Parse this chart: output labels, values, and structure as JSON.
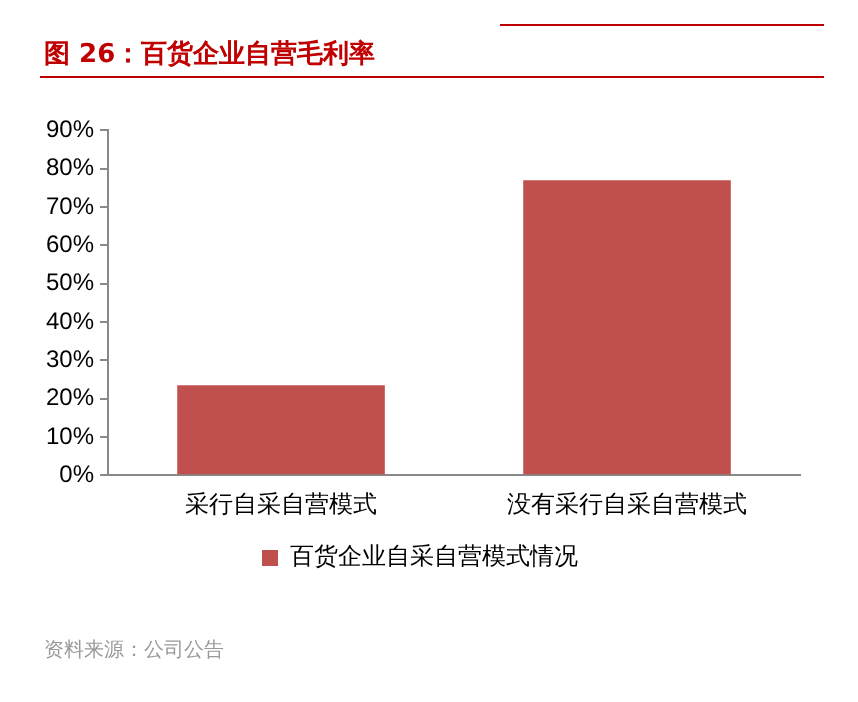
{
  "chart_data": {
    "type": "bar",
    "title": "图 26：百货企业自营毛利率",
    "categories": [
      "采行自采自营模式",
      "没有采行自采自营模式"
    ],
    "series": [
      {
        "name": "百货企业自采自营模式情况",
        "color": "#c0504d",
        "values": [
          23.5,
          77
        ]
      }
    ],
    "ylim": [
      0,
      90
    ],
    "yticks": [
      {
        "value": 0,
        "label": "0%"
      },
      {
        "value": 10,
        "label": "10%"
      },
      {
        "value": 20,
        "label": "20%"
      },
      {
        "value": 30,
        "label": "30%"
      },
      {
        "value": 40,
        "label": "40%"
      },
      {
        "value": 50,
        "label": "50%"
      },
      {
        "value": 60,
        "label": "60%"
      },
      {
        "value": 70,
        "label": "70%"
      },
      {
        "value": 80,
        "label": "80%"
      },
      {
        "value": 90,
        "label": "90%"
      }
    ],
    "grid": false,
    "legend": "bottom",
    "annotations": [
      "资料来源：公司公告"
    ]
  }
}
